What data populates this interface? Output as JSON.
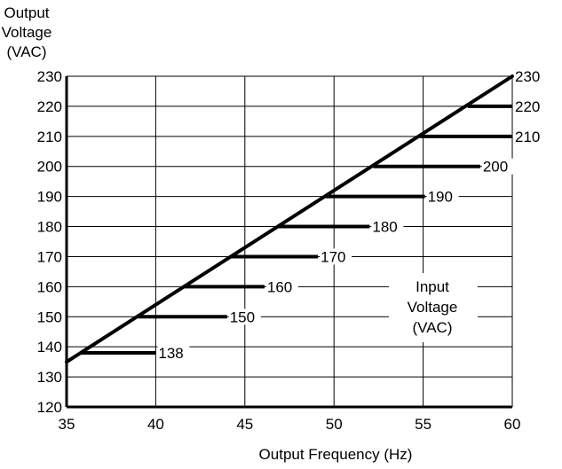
{
  "chart_data": {
    "type": "line",
    "title": "",
    "ylabel": [
      "Output",
      "Voltage",
      "(VAC)"
    ],
    "xlabel": "Output Frequency (Hz)",
    "xlim": [
      35,
      60
    ],
    "ylim": [
      120,
      230
    ],
    "xticks": [
      35,
      40,
      45,
      50,
      55,
      60
    ],
    "yticks": [
      120,
      130,
      140,
      150,
      160,
      170,
      180,
      190,
      200,
      210,
      220,
      230
    ],
    "grid": true,
    "diagonal": {
      "x": [
        35,
        60
      ],
      "y": [
        135,
        230
      ]
    },
    "series_legend": [
      "Input",
      "Voltage",
      "(VAC)"
    ],
    "series": [
      {
        "name": "138",
        "y": 138,
        "x": [
          35.8,
          40.0
        ]
      },
      {
        "name": "150",
        "y": 150,
        "x": [
          39.0,
          44.0
        ]
      },
      {
        "name": "160",
        "y": 160,
        "x": [
          41.6,
          46.1
        ]
      },
      {
        "name": "170",
        "y": 170,
        "x": [
          44.2,
          49.1
        ]
      },
      {
        "name": "180",
        "y": 180,
        "x": [
          46.8,
          52.0
        ]
      },
      {
        "name": "190",
        "y": 190,
        "x": [
          49.5,
          55.1
        ]
      },
      {
        "name": "200",
        "y": 200,
        "x": [
          52.2,
          58.2
        ]
      },
      {
        "name": "210",
        "y": 210,
        "x": [
          54.8,
          60.0
        ]
      },
      {
        "name": "220",
        "y": 220,
        "x": [
          57.5,
          60.0
        ]
      },
      {
        "name": "230",
        "y": 230,
        "x": [
          60.0,
          60.0
        ]
      }
    ]
  }
}
